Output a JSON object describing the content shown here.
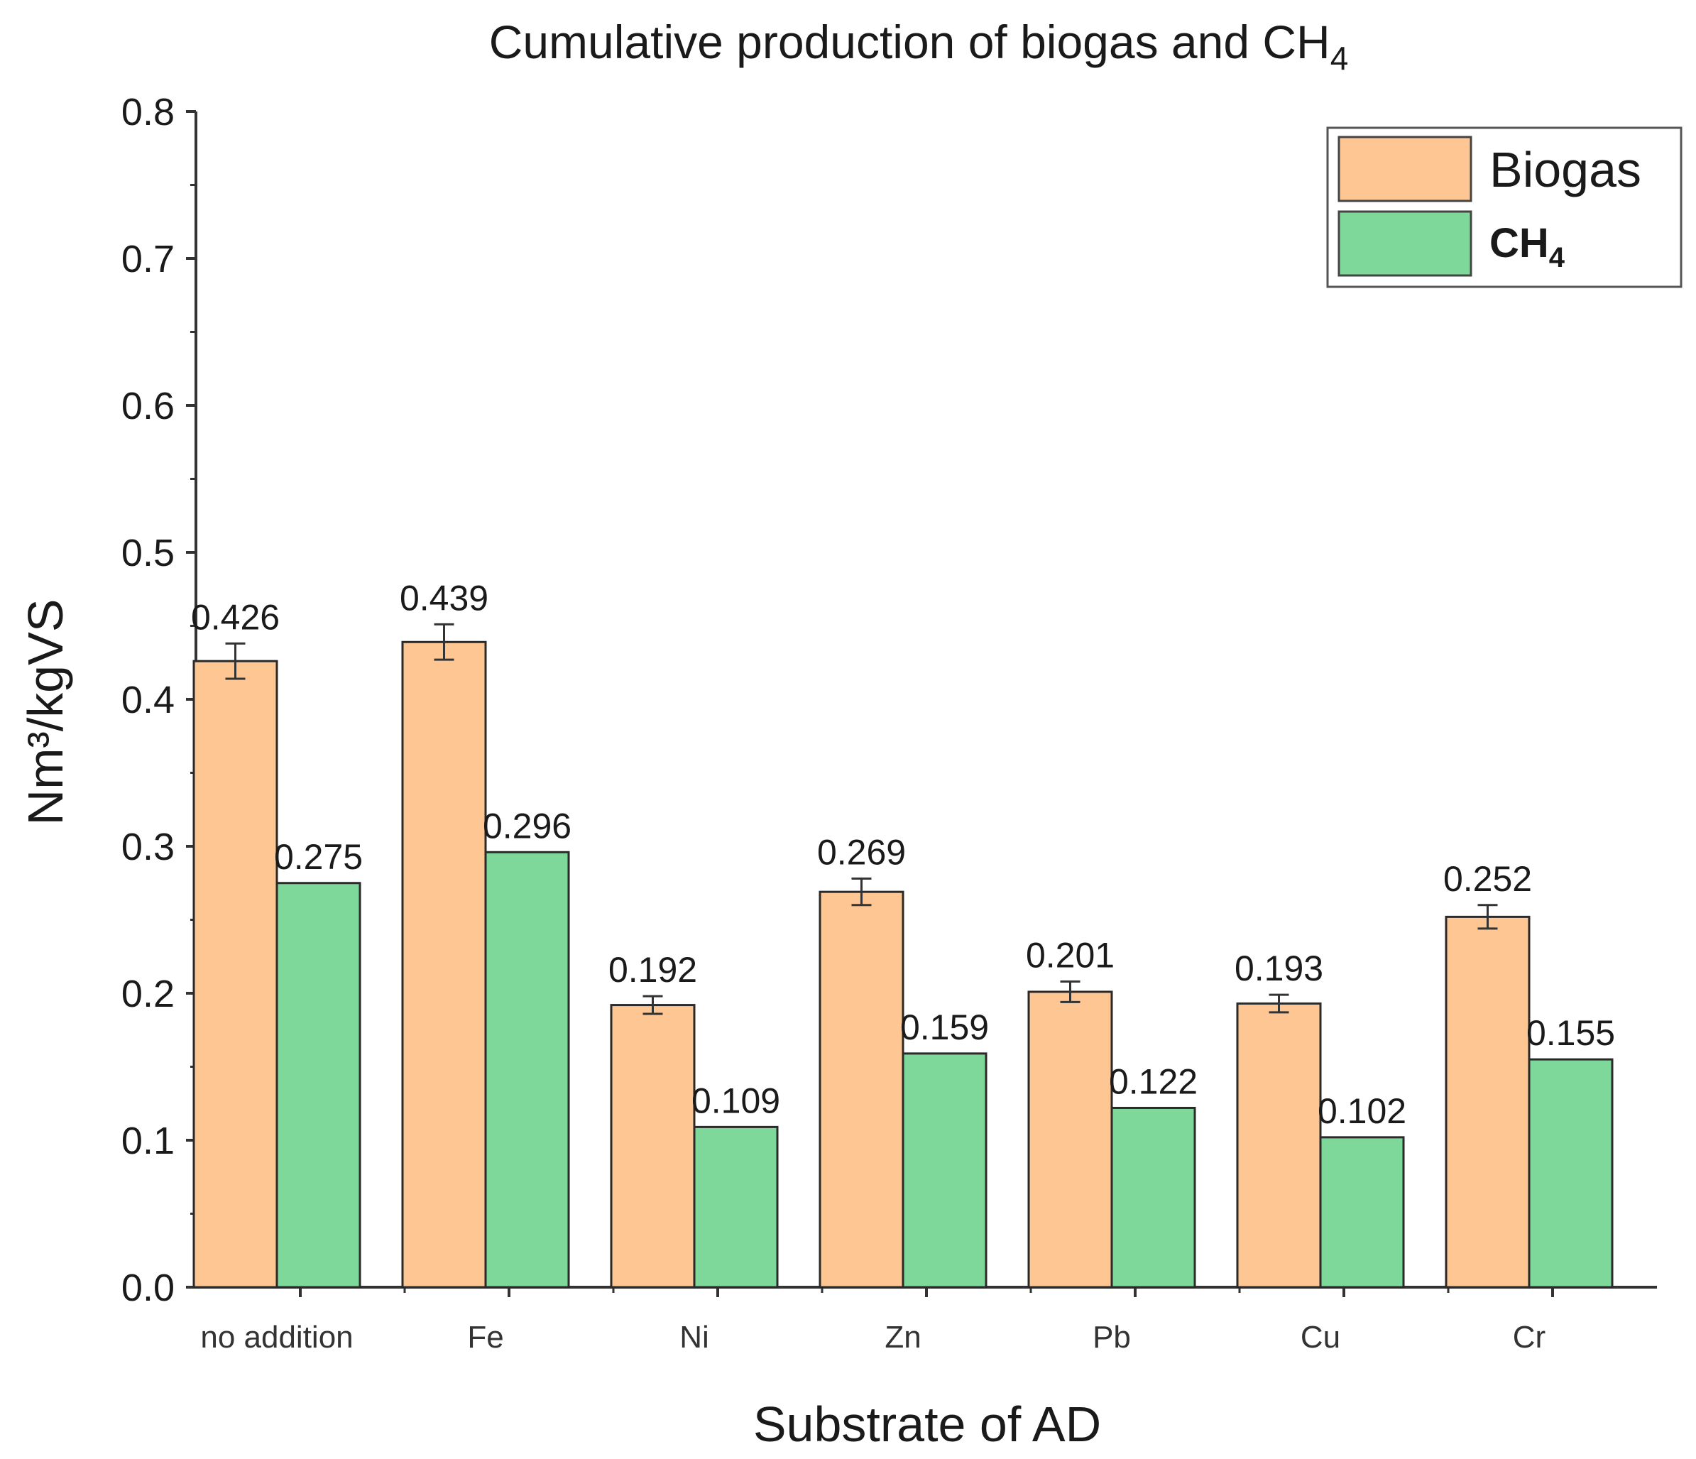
{
  "chart_data": {
    "type": "bar",
    "title": "Cumulative production of biogas and CH",
    "title_subscript": "4",
    "xlabel": "Substrate of AD",
    "ylabel": "Nm³/kgVS",
    "ylim": [
      0,
      0.8
    ],
    "yticks": [
      "0.0",
      "0.1",
      "0.2",
      "0.3",
      "0.4",
      "0.5",
      "0.6",
      "0.7",
      "0.8"
    ],
    "categories": [
      "no addition",
      "Fe",
      "Ni",
      "Zn",
      "Pb",
      "Cu",
      "Cr"
    ],
    "series": [
      {
        "name": "Biogas",
        "color": "#FDC693",
        "values": [
          0.426,
          0.439,
          0.192,
          0.269,
          0.201,
          0.193,
          0.252
        ],
        "labels": [
          "0.426",
          "0.439",
          "0.192",
          "0.269",
          "0.201",
          "0.193",
          "0.252"
        ],
        "error": [
          0.012,
          0.012,
          0.006,
          0.009,
          0.007,
          0.006,
          0.008
        ]
      },
      {
        "name": "CH",
        "name_subscript": "4",
        "color": "#7ED89A",
        "values": [
          0.275,
          0.296,
          0.109,
          0.159,
          0.122,
          0.102,
          0.155
        ],
        "labels": [
          "0.275",
          "0.296",
          "0.109",
          "0.159",
          "0.122",
          "0.102",
          "0.155"
        ]
      }
    ],
    "legend": "top-right",
    "grid": false
  }
}
